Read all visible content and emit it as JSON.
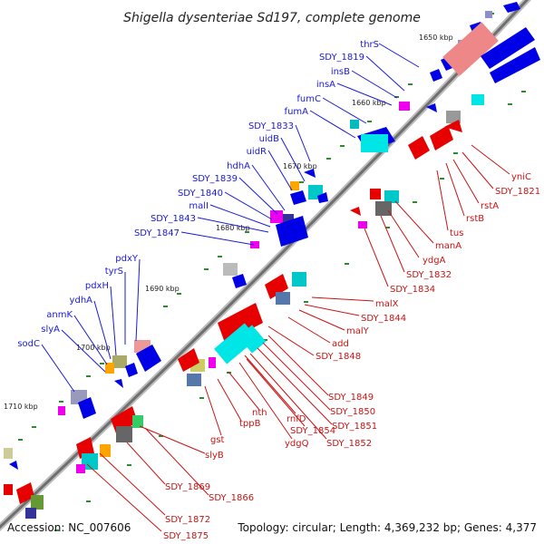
{
  "title": "Shigella dysenteriae Sd197, complete genome",
  "footer": {
    "accession": "Accession: NC_007606",
    "summary": "Topology: circular; Length: 4,369,232 bp; Genes: 4,377"
  },
  "ticks": [
    "1650 kbp",
    "1660 kbp",
    "1670 kbp",
    "1680 kbp",
    "1690 kbp",
    "1700 kbp",
    "1710 kbp"
  ],
  "labels_outer": [
    "thrS",
    "SDY_1819",
    "insB",
    "insA",
    "fumC",
    "fumA",
    "SDY_1833",
    "uidB",
    "uidR",
    "hdhA",
    "SDY_1839",
    "SDY_1840",
    "malI",
    "SDY_1843",
    "SDY_1847",
    "pdxY",
    "tyrS",
    "pdxH",
    "ydhA",
    "anmK",
    "slyA",
    "sodC"
  ],
  "labels_inner": [
    "yniC",
    "SDY_1821",
    "rstA",
    "rstB",
    "tus",
    "manA",
    "ydgA",
    "SDY_1832",
    "SDY_1834",
    "malX",
    "SDY_1844",
    "malY",
    "add",
    "SDY_1848",
    "SDY_1849",
    "SDY_1850",
    "SDY_1851",
    "SDY_1852",
    "rnfD",
    "SDY_1854",
    "ydgQ",
    "nth",
    "tppB",
    "gst",
    "slyB",
    "SDY_1869",
    "SDY_1866",
    "SDY_1872",
    "SDY_1875"
  ],
  "colors": {
    "forward_gene": "#0000e6",
    "reverse_gene": "#e60000",
    "backbone": "#7a7a7a"
  }
}
